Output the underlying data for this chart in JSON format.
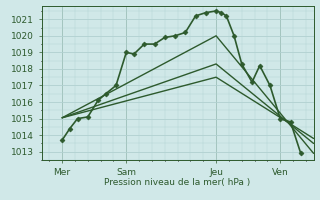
{
  "background_color": "#d0e8e8",
  "grid_color": "#b0d0d0",
  "line_color": "#2d5a2d",
  "marker_color": "#2d5a2d",
  "xlabel": "Pression niveau de la mer( hPa )",
  "ylim": [
    1012.5,
    1021.8
  ],
  "yticks": [
    1013,
    1014,
    1015,
    1016,
    1017,
    1018,
    1019,
    1020,
    1021
  ],
  "xlim": [
    -0.3,
    10.3
  ],
  "day_labels": [
    "Mer",
    "Sam",
    "Jeu",
    "Ven"
  ],
  "day_positions": [
    0.5,
    3.0,
    6.5,
    9.0
  ],
  "vline_positions": [
    0.5,
    3.0,
    6.5,
    9.0
  ],
  "main_series": {
    "x": [
      0.5,
      0.8,
      1.1,
      1.5,
      1.9,
      2.2,
      2.6,
      3.0,
      3.3,
      3.7,
      4.1,
      4.5,
      4.9,
      5.3,
      5.7,
      6.1,
      6.5,
      6.7,
      6.9,
      7.2,
      7.5,
      7.9,
      8.2,
      8.6,
      9.0,
      9.4,
      9.8
    ],
    "y": [
      1013.7,
      1014.4,
      1015.0,
      1015.1,
      1016.1,
      1016.5,
      1017.0,
      1019.0,
      1018.9,
      1019.5,
      1019.5,
      1019.9,
      1020.0,
      1020.2,
      1021.2,
      1021.4,
      1021.5,
      1021.4,
      1021.2,
      1020.0,
      1018.3,
      1017.2,
      1018.2,
      1017.0,
      1015.0,
      1014.8,
      1012.9
    ],
    "marker": "D",
    "markersize": 2.5,
    "linewidth": 1.2
  },
  "trend_lines": [
    {
      "x": [
        0.5,
        6.5,
        10.3
      ],
      "y": [
        1015.05,
        1020.0,
        1012.9
      ],
      "linewidth": 1.0
    },
    {
      "x": [
        0.5,
        6.5,
        10.3
      ],
      "y": [
        1015.05,
        1018.3,
        1013.5
      ],
      "linewidth": 1.0
    },
    {
      "x": [
        0.5,
        6.5,
        10.3
      ],
      "y": [
        1015.05,
        1017.5,
        1013.8
      ],
      "linewidth": 1.0
    }
  ]
}
